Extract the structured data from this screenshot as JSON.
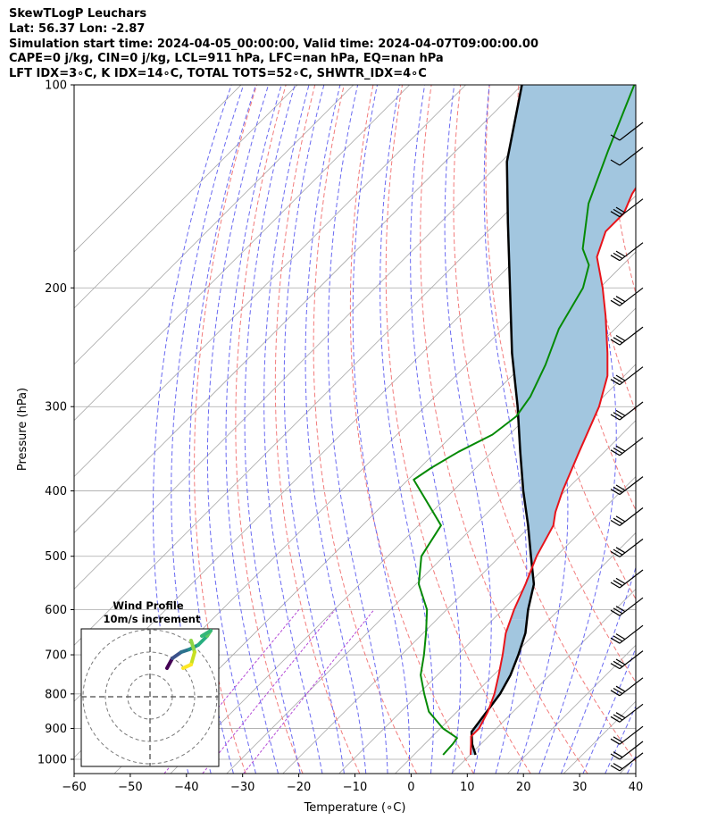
{
  "header": {
    "title": "SkewTLogP Leuchars",
    "location": "Lat: 56.37   Lon: -2.87",
    "times": "Simulation start time: 2024-04-05_00:00:00, Valid time: 2024-04-07T09:00:00.00",
    "params": "CAPE=0 j/kg, CIN=0 j/kg, LCL=911 hPa, LFC=nan hPa, EQ=nan hPa",
    "indices": "LFT IDX=3$^\\circ$C, K IDX=14$^\\circ$C, TOTAL TOTS=52$^\\circ$C, SHWTR_IDX=4$^\\circ$C"
  },
  "header_display": {
    "indices": "LFT IDX=3∘C, K IDX=14∘C, TOTAL TOTS=52∘C, SHWTR_IDX=4∘C"
  },
  "chart_data": {
    "type": "line",
    "subtype": "skew-t-log-p",
    "xlabel": "Temperature (∘C)",
    "ylabel": "Pressure (hPa)",
    "xlim": [
      -60,
      40
    ],
    "ylim": [
      1050,
      100
    ],
    "yscale": "log",
    "x_ticks": [
      -60,
      -50,
      -40,
      -30,
      -20,
      -10,
      0,
      10,
      20,
      30,
      40
    ],
    "x_tick_labels": [
      "−60",
      "−50",
      "−40",
      "−30",
      "−20",
      "−10",
      "0",
      "10",
      "20",
      "30",
      "40"
    ],
    "y_ticks": [
      1000,
      900,
      800,
      700,
      600,
      500,
      400,
      300,
      200,
      100
    ],
    "y_tick_labels": [
      "1000",
      "900",
      "800",
      "700",
      "600",
      "500",
      "400",
      "300",
      "200",
      "100"
    ],
    "grid": true,
    "colors": {
      "temperature": "#e8141b",
      "dewpoint": "#058a05",
      "parcel": "#000000",
      "shade": "#a2c6df",
      "dry_adiabat": "#f27b7b",
      "moist_adiabat": "#5a5af0",
      "mixing_ratio": "#b44ad6",
      "isotherm": "#a8a8a8"
    },
    "series": [
      {
        "key": "temperature",
        "points": [
          [
            10.1,
            985
          ],
          [
            8.3,
            950
          ],
          [
            6.9,
            925
          ],
          [
            6.9,
            900
          ],
          [
            5.5,
            850
          ],
          [
            3.5,
            800
          ],
          [
            0.9,
            750
          ],
          [
            -2.0,
            700
          ],
          [
            -5.3,
            650
          ],
          [
            -8.0,
            600
          ],
          [
            -10.5,
            550
          ],
          [
            -13.5,
            500
          ],
          [
            -16.0,
            450
          ],
          [
            -18.0,
            430
          ],
          [
            -20.5,
            400
          ],
          [
            -24.5,
            350
          ],
          [
            -29.0,
            300
          ],
          [
            -33.0,
            270
          ],
          [
            -37.0,
            250
          ],
          [
            -44.0,
            220
          ],
          [
            -49.5,
            200
          ],
          [
            -56.0,
            180
          ],
          [
            -59.0,
            165
          ],
          [
            -59.0,
            155
          ],
          [
            -61.0,
            145
          ],
          [
            -63.0,
            130
          ],
          [
            -63.5,
            120
          ],
          [
            -64.0,
            110
          ],
          [
            -65.5,
            100
          ]
        ]
      },
      {
        "key": "dewpoint",
        "points": [
          [
            5.2,
            985
          ],
          [
            5.0,
            950
          ],
          [
            4.7,
            930
          ],
          [
            0.5,
            900
          ],
          [
            -5.0,
            850
          ],
          [
            -9.0,
            800
          ],
          [
            -13.0,
            750
          ],
          [
            -16.0,
            700
          ],
          [
            -19.5,
            650
          ],
          [
            -23.5,
            600
          ],
          [
            -29.5,
            550
          ],
          [
            -34.0,
            500
          ],
          [
            -36.0,
            450
          ],
          [
            -49.0,
            385
          ],
          [
            -48.0,
            370
          ],
          [
            -46.0,
            350
          ],
          [
            -43.0,
            330
          ],
          [
            -42.0,
            310
          ],
          [
            -43.0,
            290
          ],
          [
            -46.0,
            260
          ],
          [
            -50.0,
            230
          ],
          [
            -53.0,
            200
          ],
          [
            -56.0,
            185
          ],
          [
            -60.0,
            175
          ],
          [
            -67.0,
            150
          ],
          [
            -73.0,
            125
          ],
          [
            -80.0,
            100
          ]
        ]
      },
      {
        "key": "parcel",
        "points": [
          [
            11.0,
            985
          ],
          [
            8.5,
            950
          ],
          [
            6.2,
            911
          ],
          [
            5.3,
            850
          ],
          [
            4.5,
            800
          ],
          [
            3.0,
            750
          ],
          [
            0.8,
            700
          ],
          [
            -1.8,
            650
          ],
          [
            -5.5,
            600
          ],
          [
            -9.0,
            550
          ],
          [
            -14.5,
            500
          ],
          [
            -20.5,
            450
          ],
          [
            -27.5,
            400
          ],
          [
            -35.0,
            350
          ],
          [
            -43.5,
            300
          ],
          [
            -54.0,
            250
          ],
          [
            -66.0,
            200
          ],
          [
            -78.0,
            160
          ],
          [
            -89.0,
            130
          ],
          [
            -100.0,
            100
          ]
        ]
      }
    ],
    "wind_barbs": {
      "pressures": [
        100,
        130,
        155,
        180,
        210,
        240,
        275,
        310,
        350,
        400,
        445,
        495,
        550,
        605,
        665,
        725,
        795,
        870,
        950,
        1000,
        1040
      ],
      "note": "half-barbs and flags as drawn"
    },
    "inset": {
      "title": "Wind Profile",
      "subtitle": "10m/s increment",
      "type": "hodograph",
      "rings": 3,
      "colormap": "viridis"
    }
  }
}
